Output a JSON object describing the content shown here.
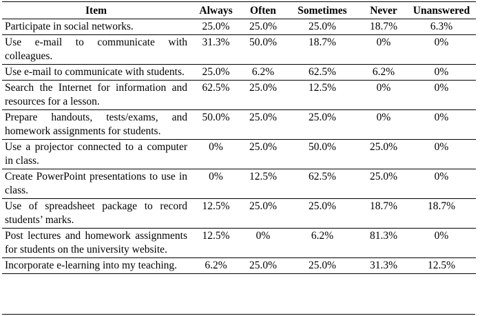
{
  "table": {
    "headers": [
      "Item",
      "Always",
      "Often",
      "Sometimes",
      "Never",
      "Unanswered"
    ],
    "rows": [
      {
        "item": "Participate in social networks.",
        "values": [
          "25.0%",
          "25.0%",
          "25.0%",
          "18.7%",
          "6.3%"
        ]
      },
      {
        "item": "Use e-mail to communicate with colleagues.",
        "values": [
          "31.3%",
          "50.0%",
          "18.7%",
          "0%",
          "0%"
        ]
      },
      {
        "item": "Use e-mail to communicate with students.",
        "values": [
          "25.0%",
          "6.2%",
          "62.5%",
          "6.2%",
          "0%"
        ]
      },
      {
        "item": "Search the Internet for information and resources for a lesson.",
        "values": [
          "62.5%",
          "25.0%",
          "12.5%",
          "0%",
          "0%"
        ]
      },
      {
        "item": "Prepare handouts, tests/exams, and homework assignments for students.",
        "values": [
          "50.0%",
          "25.0%",
          "25.0%",
          "0%",
          "0%"
        ]
      },
      {
        "item": "Use a projector connected to a computer in class.",
        "values": [
          "0%",
          "25.0%",
          "50.0%",
          "25.0%",
          "0%"
        ]
      },
      {
        "item": "Create PowerPoint presentations to use in class.",
        "values": [
          "0%",
          "12.5%",
          "62.5%",
          "25.0%",
          "0%"
        ]
      },
      {
        "item": "Use of spreadsheet package to record students’ marks.",
        "values": [
          "12.5%",
          "25.0%",
          "25.0%",
          "18.7%",
          "18.7%"
        ]
      },
      {
        "item": "Post lectures and homework assignments for students on the university website.",
        "values": [
          "12.5%",
          "0%",
          "6.2%",
          "81.3%",
          "0%"
        ]
      },
      {
        "item": "Incorporate e-learning into my teaching.",
        "values": [
          "6.2%",
          "25.0%",
          "25.0%",
          "31.3%",
          "12.5%"
        ]
      }
    ]
  }
}
